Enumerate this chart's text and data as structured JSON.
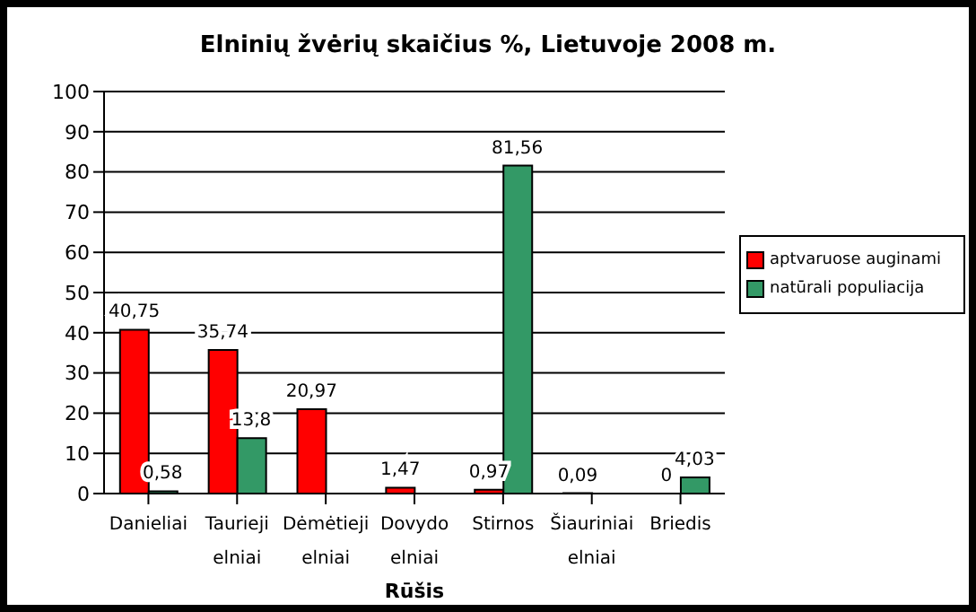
{
  "chart_data": {
    "type": "bar",
    "title": "Elninių žvėrių skaičius %, Lietuvoje 2008 m.",
    "xlabel": "Rūšis",
    "categories": [
      "Danieliai",
      "Taurieji elniai",
      "Dėmėtieji elniai",
      "Dovydo elniai",
      "Stirnos",
      "Šiauriniai elniai",
      "Briedis"
    ],
    "series": [
      {
        "name": "aptvaruose auginami",
        "color": "#ff0000",
        "values": [
          40.75,
          35.74,
          20.97,
          1.47,
          0.97,
          0.09,
          0
        ],
        "value_labels": [
          "40,75",
          "35,74",
          "20,97",
          "1,47",
          "0,97",
          "0,09",
          "0"
        ]
      },
      {
        "name": "natūrali populiacija",
        "color": "#339966",
        "values": [
          0.58,
          13.8,
          null,
          null,
          81.56,
          null,
          4.03
        ],
        "value_labels": [
          "0,58",
          "13,8",
          null,
          null,
          "81,56",
          null,
          "4,03"
        ]
      }
    ],
    "ylim": [
      0,
      100
    ],
    "yticks": [
      0,
      10,
      20,
      30,
      40,
      50,
      60,
      70,
      80,
      90,
      100
    ],
    "grid": "y",
    "legend": "right"
  }
}
